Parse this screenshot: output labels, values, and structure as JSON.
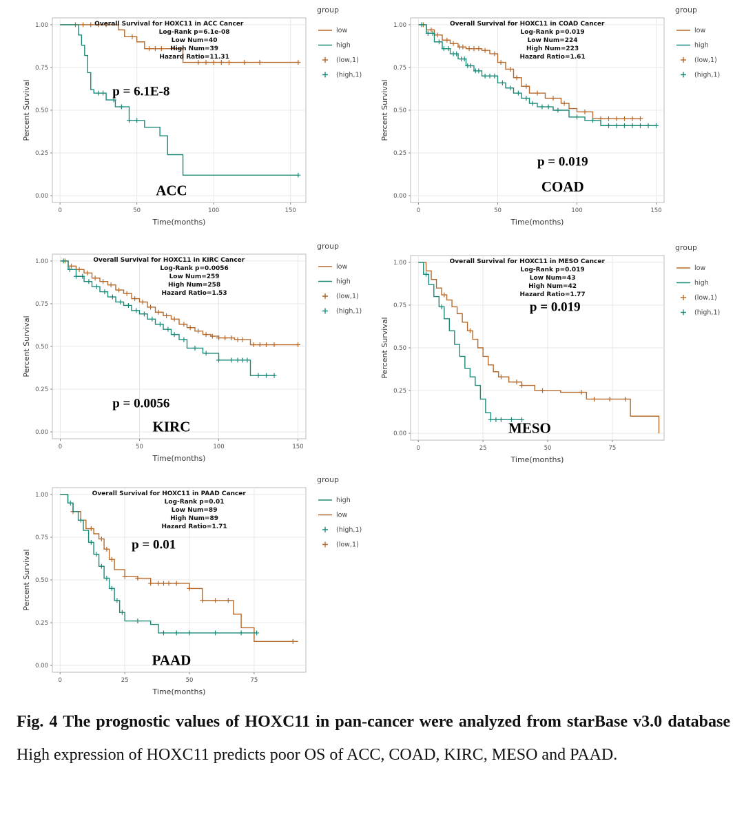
{
  "caption": {
    "bold": "Fig. 4 The prognostic values of HOXC11 in pan-cancer were analyzed from starBase v3.0 database",
    "text": "High expression of HOXC11 predicts poor OS of ACC, COAD, KIRC, MESO and PAAD."
  },
  "colors": {
    "low": "#b5692b",
    "high": "#1a8a78"
  },
  "chart_data": [
    {
      "type": "line",
      "title": "Overall Survival for HOXC11 in ACC Cancer",
      "stats": [
        "Log-Rank p=6.1e-08",
        "Low Num=40",
        "High Num=39",
        "Hazard Ratio=11.31"
      ],
      "xlabel": "Time(months)",
      "ylabel": "Percent Survival",
      "xlim": [
        -5,
        160
      ],
      "xticks": [
        0,
        50,
        100,
        150
      ],
      "ylim": [
        -0.04,
        1.04
      ],
      "yticks": [
        "0.00",
        "0.25",
        "0.50",
        "0.75",
        "1.00"
      ],
      "pvalue_label": "p = 6.1E-8",
      "cancer_label": "ACC",
      "legend_title": "group",
      "legend": [
        {
          "label": "low",
          "kind": "line",
          "series": "low"
        },
        {
          "label": "high",
          "kind": "line",
          "series": "high"
        },
        {
          "label": "(low,1)",
          "kind": "cross",
          "series": "low"
        },
        {
          "label": "(high,1)",
          "kind": "cross",
          "series": "high"
        }
      ],
      "series": [
        {
          "name": "low",
          "x": [
            0,
            38,
            42,
            50,
            55,
            80,
            155
          ],
          "y": [
            1.0,
            0.97,
            0.93,
            0.9,
            0.86,
            0.78,
            0.78
          ],
          "censor_x": [
            10,
            15,
            20,
            25,
            30,
            47,
            58,
            62,
            66,
            90,
            95,
            100,
            105,
            110,
            120,
            130,
            155
          ]
        },
        {
          "name": "high",
          "x": [
            0,
            12,
            14,
            16,
            18,
            20,
            22,
            30,
            36,
            45,
            55,
            65,
            70,
            80,
            155
          ],
          "y": [
            1.0,
            0.94,
            0.88,
            0.82,
            0.72,
            0.62,
            0.6,
            0.56,
            0.52,
            0.44,
            0.4,
            0.35,
            0.24,
            0.12,
            0.12
          ],
          "censor_x": [
            25,
            28,
            35,
            40,
            45,
            50,
            155
          ]
        }
      ]
    },
    {
      "type": "line",
      "title": "Overall Survival for HOXC11 in COAD Cancer",
      "stats": [
        "Log-Rank p=0.019",
        "Low Num=224",
        "High Num=223",
        "Hazard Ratio=1.61"
      ],
      "xlabel": "Time(months)",
      "ylabel": "Percent Survival",
      "xlim": [
        -5,
        155
      ],
      "xticks": [
        0,
        50,
        100,
        150
      ],
      "ylim": [
        -0.04,
        1.04
      ],
      "yticks": [
        "0.00",
        "0.25",
        "0.50",
        "0.75",
        "1.00"
      ],
      "pvalue_label": "p = 0.019",
      "cancer_label": "COAD",
      "legend_title": "group",
      "legend": [
        {
          "label": "low",
          "kind": "line",
          "series": "low"
        },
        {
          "label": "high",
          "kind": "line",
          "series": "high"
        },
        {
          "label": "(low,1)",
          "kind": "cross",
          "series": "low"
        },
        {
          "label": "(high,1)",
          "kind": "cross",
          "series": "high"
        }
      ],
      "series": [
        {
          "name": "low",
          "x": [
            0,
            5,
            10,
            15,
            20,
            25,
            30,
            40,
            45,
            50,
            55,
            60,
            65,
            70,
            80,
            90,
            95,
            100,
            110,
            140
          ],
          "y": [
            1.0,
            0.97,
            0.94,
            0.91,
            0.89,
            0.87,
            0.86,
            0.85,
            0.83,
            0.78,
            0.74,
            0.69,
            0.64,
            0.6,
            0.57,
            0.54,
            0.51,
            0.49,
            0.45,
            0.45
          ],
          "censor_x": [
            3,
            8,
            12,
            18,
            22,
            26,
            28,
            32,
            35,
            38,
            42,
            48,
            52,
            58,
            62,
            68,
            75,
            85,
            92,
            105,
            115,
            120,
            125,
            130,
            135,
            140
          ]
        },
        {
          "name": "high",
          "x": [
            0,
            5,
            10,
            15,
            20,
            25,
            30,
            35,
            40,
            50,
            55,
            60,
            65,
            70,
            75,
            85,
            95,
            105,
            115,
            150
          ],
          "y": [
            1.0,
            0.95,
            0.9,
            0.86,
            0.83,
            0.8,
            0.76,
            0.73,
            0.7,
            0.66,
            0.63,
            0.6,
            0.57,
            0.54,
            0.52,
            0.5,
            0.46,
            0.44,
            0.41,
            0.41
          ],
          "censor_x": [
            2,
            6,
            9,
            13,
            16,
            19,
            22,
            24,
            27,
            29,
            31,
            33,
            36,
            38,
            42,
            45,
            48,
            53,
            58,
            63,
            68,
            72,
            78,
            82,
            88,
            100,
            110,
            120,
            125,
            130,
            135,
            140,
            145,
            150
          ]
        }
      ]
    },
    {
      "type": "line",
      "title": "Overall Survival for HOXC11 in KIRC Cancer",
      "stats": [
        "Log-Rank p=0.0056",
        "Low Num=259",
        "High Num=258",
        "Hazard Ratio=1.53"
      ],
      "xlabel": "Time(months)",
      "ylabel": "Percent Survival",
      "xlim": [
        -5,
        155
      ],
      "xticks": [
        0,
        50,
        100,
        150
      ],
      "ylim": [
        -0.04,
        1.04
      ],
      "yticks": [
        "0.00",
        "0.25",
        "0.50",
        "0.75",
        "1.00"
      ],
      "pvalue_label": "p = 0.0056",
      "cancer_label": "KIRC",
      "legend_title": "group",
      "legend": [
        {
          "label": "low",
          "kind": "line",
          "series": "low"
        },
        {
          "label": "high",
          "kind": "line",
          "series": "high"
        },
        {
          "label": "(low,1)",
          "kind": "cross",
          "series": "low"
        },
        {
          "label": "(high,1)",
          "kind": "cross",
          "series": "high"
        }
      ],
      "series": [
        {
          "name": "low",
          "x": [
            0,
            5,
            10,
            15,
            20,
            25,
            30,
            35,
            40,
            45,
            50,
            55,
            60,
            65,
            70,
            75,
            80,
            85,
            90,
            95,
            100,
            110,
            120,
            150
          ],
          "y": [
            1.0,
            0.97,
            0.95,
            0.93,
            0.9,
            0.88,
            0.86,
            0.83,
            0.81,
            0.78,
            0.76,
            0.73,
            0.7,
            0.68,
            0.66,
            0.63,
            0.61,
            0.59,
            0.57,
            0.56,
            0.55,
            0.54,
            0.51,
            0.51
          ],
          "censor_x": [
            3,
            7,
            12,
            17,
            22,
            27,
            32,
            37,
            42,
            47,
            52,
            57,
            62,
            67,
            72,
            78,
            82,
            87,
            92,
            96,
            100,
            104,
            108,
            112,
            115,
            122,
            126,
            130,
            135,
            150
          ]
        },
        {
          "name": "high",
          "x": [
            0,
            5,
            10,
            15,
            20,
            25,
            30,
            35,
            40,
            45,
            50,
            55,
            60,
            65,
            70,
            75,
            80,
            90,
            100,
            120,
            135
          ],
          "y": [
            1.0,
            0.95,
            0.91,
            0.88,
            0.85,
            0.82,
            0.79,
            0.76,
            0.74,
            0.71,
            0.69,
            0.66,
            0.63,
            0.6,
            0.57,
            0.54,
            0.49,
            0.46,
            0.42,
            0.33,
            0.33
          ],
          "censor_x": [
            2,
            6,
            10,
            14,
            18,
            23,
            28,
            33,
            38,
            43,
            48,
            53,
            58,
            63,
            68,
            72,
            78,
            85,
            92,
            100,
            108,
            112,
            115,
            118,
            125,
            130,
            135
          ]
        }
      ]
    },
    {
      "type": "line",
      "title": "Overall Survival for HOXC11 in MESO Cancer",
      "stats": [
        "Log-Rank p=0.019",
        "Low Num=43",
        "High Num=42",
        "Hazard Ratio=1.77"
      ],
      "xlabel": "Time(months)",
      "ylabel": "Percent Survival",
      "xlim": [
        -3,
        95
      ],
      "xticks": [
        0,
        25,
        50,
        75
      ],
      "ylim": [
        -0.04,
        1.04
      ],
      "yticks": [
        "0.00",
        "0.25",
        "0.50",
        "0.75",
        "1.00"
      ],
      "pvalue_label": "p = 0.019",
      "cancer_label": "MESO",
      "legend_title": "group",
      "legend": [
        {
          "label": "low",
          "kind": "line",
          "series": "low"
        },
        {
          "label": "high",
          "kind": "line",
          "series": "high"
        },
        {
          "label": "(low,1)",
          "kind": "cross",
          "series": "low"
        },
        {
          "label": "(high,1)",
          "kind": "cross",
          "series": "high"
        }
      ],
      "series": [
        {
          "name": "low",
          "x": [
            0,
            3,
            5,
            7,
            9,
            11,
            13,
            15,
            17,
            19,
            21,
            23,
            25,
            27,
            29,
            31,
            35,
            40,
            45,
            55,
            65,
            75,
            82,
            92,
            93
          ],
          "y": [
            1.0,
            0.95,
            0.9,
            0.85,
            0.81,
            0.78,
            0.74,
            0.7,
            0.65,
            0.6,
            0.55,
            0.5,
            0.45,
            0.4,
            0.36,
            0.33,
            0.3,
            0.28,
            0.25,
            0.24,
            0.2,
            0.2,
            0.1,
            0.1,
            0.0
          ],
          "censor_x": [
            10,
            20,
            32,
            38,
            40,
            48,
            63,
            68,
            74,
            80
          ]
        },
        {
          "name": "high",
          "x": [
            0,
            2,
            4,
            6,
            8,
            10,
            12,
            14,
            16,
            18,
            20,
            22,
            24,
            26,
            28,
            40
          ],
          "y": [
            1.0,
            0.93,
            0.87,
            0.8,
            0.74,
            0.67,
            0.6,
            0.52,
            0.45,
            0.38,
            0.33,
            0.28,
            0.2,
            0.12,
            0.08,
            0.08
          ],
          "censor_x": [
            3,
            9,
            28,
            30,
            32,
            36,
            40
          ]
        }
      ]
    },
    {
      "type": "line",
      "title": "Overall Survival for HOXC11 in PAAD Cancer",
      "stats": [
        "Log-Rank p=0.01",
        "Low Num=89",
        "High Num=89",
        "Hazard Ratio=1.71"
      ],
      "xlabel": "Time(months)",
      "ylabel": "Percent Survival",
      "xlim": [
        -3,
        95
      ],
      "xticks": [
        0,
        25,
        50,
        75
      ],
      "ylim": [
        -0.04,
        1.04
      ],
      "yticks": [
        "0.00",
        "0.25",
        "0.50",
        "0.75",
        "1.00"
      ],
      "pvalue_label": "p = 0.01",
      "cancer_label": "PAAD",
      "legend_title": "group",
      "legend": [
        {
          "label": "high",
          "kind": "line",
          "series": "high"
        },
        {
          "label": "low",
          "kind": "line",
          "series": "low"
        },
        {
          "label": "(high,1)",
          "kind": "cross",
          "series": "high"
        },
        {
          "label": "(low,1)",
          "kind": "cross",
          "series": "low"
        }
      ],
      "series": [
        {
          "name": "low",
          "x": [
            0,
            3,
            5,
            8,
            10,
            13,
            15,
            17,
            19,
            21,
            25,
            30,
            35,
            45,
            50,
            55,
            67,
            70,
            75,
            92
          ],
          "y": [
            1.0,
            0.95,
            0.9,
            0.85,
            0.8,
            0.77,
            0.74,
            0.68,
            0.62,
            0.56,
            0.52,
            0.51,
            0.48,
            0.48,
            0.45,
            0.38,
            0.3,
            0.22,
            0.14,
            0.14
          ],
          "censor_x": [
            5,
            12,
            16,
            18,
            20,
            25,
            30,
            35,
            38,
            40,
            42,
            45,
            50,
            55,
            60,
            65,
            90
          ]
        },
        {
          "name": "high",
          "x": [
            0,
            3,
            5,
            7,
            9,
            11,
            13,
            15,
            17,
            19,
            21,
            23,
            25,
            35,
            38,
            76
          ],
          "y": [
            1.0,
            0.95,
            0.9,
            0.85,
            0.79,
            0.72,
            0.65,
            0.58,
            0.51,
            0.45,
            0.38,
            0.31,
            0.26,
            0.24,
            0.19,
            0.19
          ],
          "censor_x": [
            4,
            8,
            12,
            14,
            16,
            18,
            20,
            22,
            24,
            30,
            40,
            45,
            50,
            60,
            70,
            76
          ]
        }
      ]
    }
  ]
}
